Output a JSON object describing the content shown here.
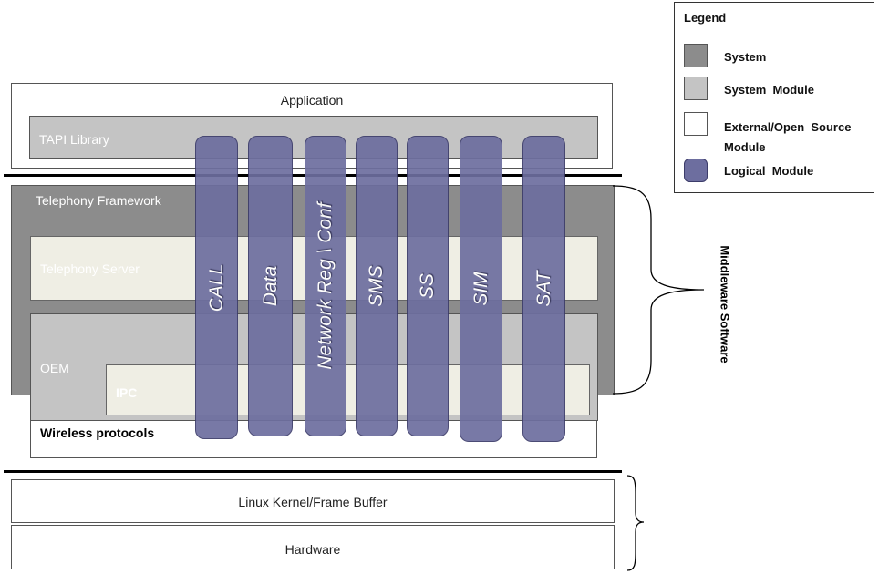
{
  "colors": {
    "system": "#8c8c8c",
    "system_module": "#c4c4c4",
    "external_module": "#ffffff",
    "external_module_inner": "#efeee4",
    "logical_module": "#6d6e9f",
    "border": "#555555"
  },
  "legend": {
    "title": "Legend",
    "items": [
      {
        "label": "System",
        "kind": "system"
      },
      {
        "label": "System  Module",
        "kind": "system_module"
      },
      {
        "label": "External/Open  Source\nModule",
        "kind": "external_module"
      },
      {
        "label": "Logical  Module",
        "kind": "logical_module"
      }
    ]
  },
  "layers": {
    "application": "Application",
    "tapi_library": "TAPI Library",
    "telephony_framework": "Telephony Framework",
    "telephony_server": "Telephony Server",
    "oem": "OEM",
    "ipc": "IPC",
    "wireless_protocols": "Wireless protocols",
    "linux_kernel": "Linux Kernel/Frame Buffer",
    "hardware": "Hardware"
  },
  "logical_modules": [
    "CALL",
    "Data",
    "Network Reg \\ Conf",
    "SMS",
    "SS",
    "SIM",
    "SAT"
  ],
  "middleware_label": "Middleware  Software"
}
